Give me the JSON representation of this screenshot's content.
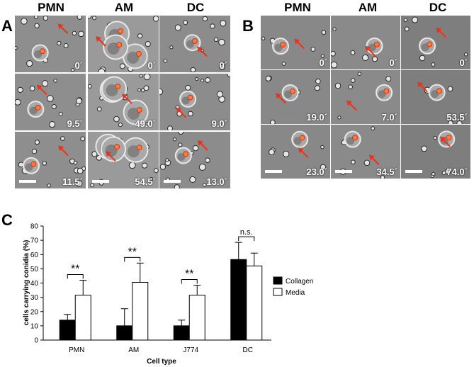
{
  "panelA": {
    "letter": "A",
    "columns": [
      "PMN",
      "AM",
      "DC"
    ],
    "timepoints": [
      [
        "0´",
        "0´",
        "0´"
      ],
      [
        "9.5´",
        "49.0´",
        "9.0´"
      ],
      [
        "11.5´",
        "54.5´",
        "13.0´"
      ]
    ]
  },
  "panelB": {
    "letter": "B",
    "columns": [
      "PMN",
      "AM",
      "DC"
    ],
    "timepoints": [
      [
        "0´",
        "0´",
        "0´"
      ],
      [
        "19.0´",
        "7.0´",
        "53.5´"
      ],
      [
        "23.0´",
        "34.5´",
        "74.0´"
      ]
    ]
  },
  "panelC": {
    "letter": "C"
  },
  "chart_data": {
    "type": "bar",
    "categories": [
      "PMN",
      "AM",
      "J774",
      "DC"
    ],
    "series": [
      {
        "name": "Collagen",
        "values": [
          14,
          10,
          10,
          56.5
        ],
        "errors": [
          4,
          12,
          4,
          12
        ],
        "color": "#000000"
      },
      {
        "name": "Media",
        "values": [
          31.5,
          40.5,
          31.5,
          52
        ],
        "errors": [
          10.5,
          13.5,
          7,
          9
        ],
        "color": "#ffffff"
      }
    ],
    "xlabel": "Cell type",
    "ylabel": "cells carrying conidia (%)",
    "ylim": [
      0,
      80
    ],
    "yticks": [
      0,
      10,
      20,
      30,
      40,
      50,
      60,
      70,
      80
    ],
    "significance": [
      "**",
      "**",
      "**",
      "n.s."
    ],
    "legend_position": "right"
  }
}
